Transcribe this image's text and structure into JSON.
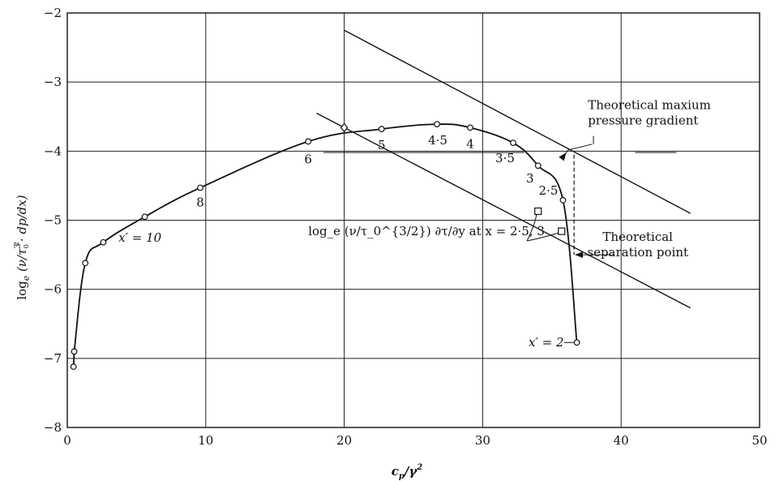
{
  "chart_data": {
    "type": "line",
    "xlabel": "c_p/γ²",
    "ylabel": "log_e (ν/τ_0^{3/2} · dp/dx)",
    "xlim": [
      0,
      50
    ],
    "ylim": [
      -8,
      -2
    ],
    "x_ticks": [
      "0",
      "10",
      "20",
      "30",
      "40",
      "50"
    ],
    "y_ticks": [
      "−8",
      "−7",
      "−6",
      "−5",
      "−4",
      "−3",
      "−2"
    ],
    "grid": true,
    "series": [
      {
        "kind": "measured-curve",
        "marker": "circle",
        "points": [
          {
            "x": 0.45,
            "y": -7.12
          },
          {
            "x": 0.5,
            "y": -6.9
          },
          {
            "x": 1.3,
            "y": -5.62
          },
          {
            "x": 2.6,
            "y": -5.32
          },
          {
            "x": 5.6,
            "y": -4.95
          },
          {
            "x": 9.6,
            "y": -4.53
          },
          {
            "x": 17.4,
            "y": -3.86
          },
          {
            "x": 22.7,
            "y": -3.68
          },
          {
            "x": 26.7,
            "y": -3.61
          },
          {
            "x": 29.1,
            "y": -3.66
          },
          {
            "x": 32.2,
            "y": -3.88
          },
          {
            "x": 34.0,
            "y": -4.21
          },
          {
            "x": 35.8,
            "y": -4.71
          },
          {
            "x": 36.8,
            "y": -6.77
          }
        ],
        "point_labels": [
          {
            "text": "x′ = 10",
            "x": 5.6,
            "y": -4.95
          },
          {
            "text": "8",
            "x": 9.6,
            "y": -4.53
          },
          {
            "text": "6",
            "x": 17.4,
            "y": -3.86
          },
          {
            "text": "5",
            "x": 22.7,
            "y": -3.68
          },
          {
            "text": "4·5",
            "x": 26.7,
            "y": -3.61
          },
          {
            "text": "4",
            "x": 29.1,
            "y": -3.66
          },
          {
            "text": "3·5",
            "x": 32.2,
            "y": -3.88
          },
          {
            "text": "3",
            "x": 34.0,
            "y": -4.21
          },
          {
            "text": "2·5",
            "x": 35.8,
            "y": -4.71
          },
          {
            "text": "x′ = 2",
            "x": 36.8,
            "y": -6.77
          }
        ]
      },
      {
        "kind": "theoretical-line",
        "points": [
          {
            "x": 20,
            "y": -2.25
          },
          {
            "x": 45,
            "y": -4.9
          }
        ]
      },
      {
        "kind": "theoretical-line",
        "points": [
          {
            "x": 18,
            "y": -3.45
          },
          {
            "x": 45,
            "y": -6.27
          }
        ]
      },
      {
        "kind": "measured-points",
        "marker": "square",
        "points": [
          {
            "x": 34.0,
            "y": -4.87
          },
          {
            "x": 35.7,
            "y": -5.16
          }
        ]
      },
      {
        "kind": "measured-points",
        "marker": "diamond",
        "points": [
          {
            "x": 20.0,
            "y": -3.66
          }
        ]
      }
    ],
    "annotations": [
      {
        "text_lines": [
          "Theoretical maxium",
          "pressure gradient"
        ],
        "x": 36.0,
        "y": -4.03
      },
      {
        "text_lines": [
          "Theoretical",
          "separation point"
        ],
        "x": 36.6,
        "y": -5.5
      },
      {
        "text": "log_e (ν/τ_0^{3/2}) ∂τ/∂y at x = 2·5, 3",
        "x": 33.0,
        "y": -5.25
      }
    ]
  }
}
